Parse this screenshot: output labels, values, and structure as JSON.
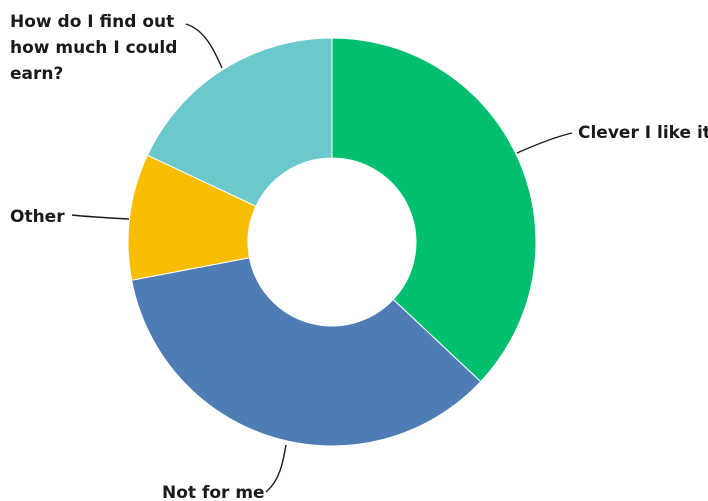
{
  "chart_data": {
    "type": "pie",
    "donut": true,
    "title": "",
    "slices": [
      {
        "label": "Clever I like it",
        "value": 37,
        "color": "#00BF6F"
      },
      {
        "label": "Not for me",
        "value": 35,
        "color": "#507CB6"
      },
      {
        "label": "Other",
        "value": 10,
        "color": "#F9BE00"
      },
      {
        "label": "How do I find out how much I could earn?",
        "value": 18,
        "color": "#6BC8CD"
      }
    ],
    "legend": "none"
  }
}
